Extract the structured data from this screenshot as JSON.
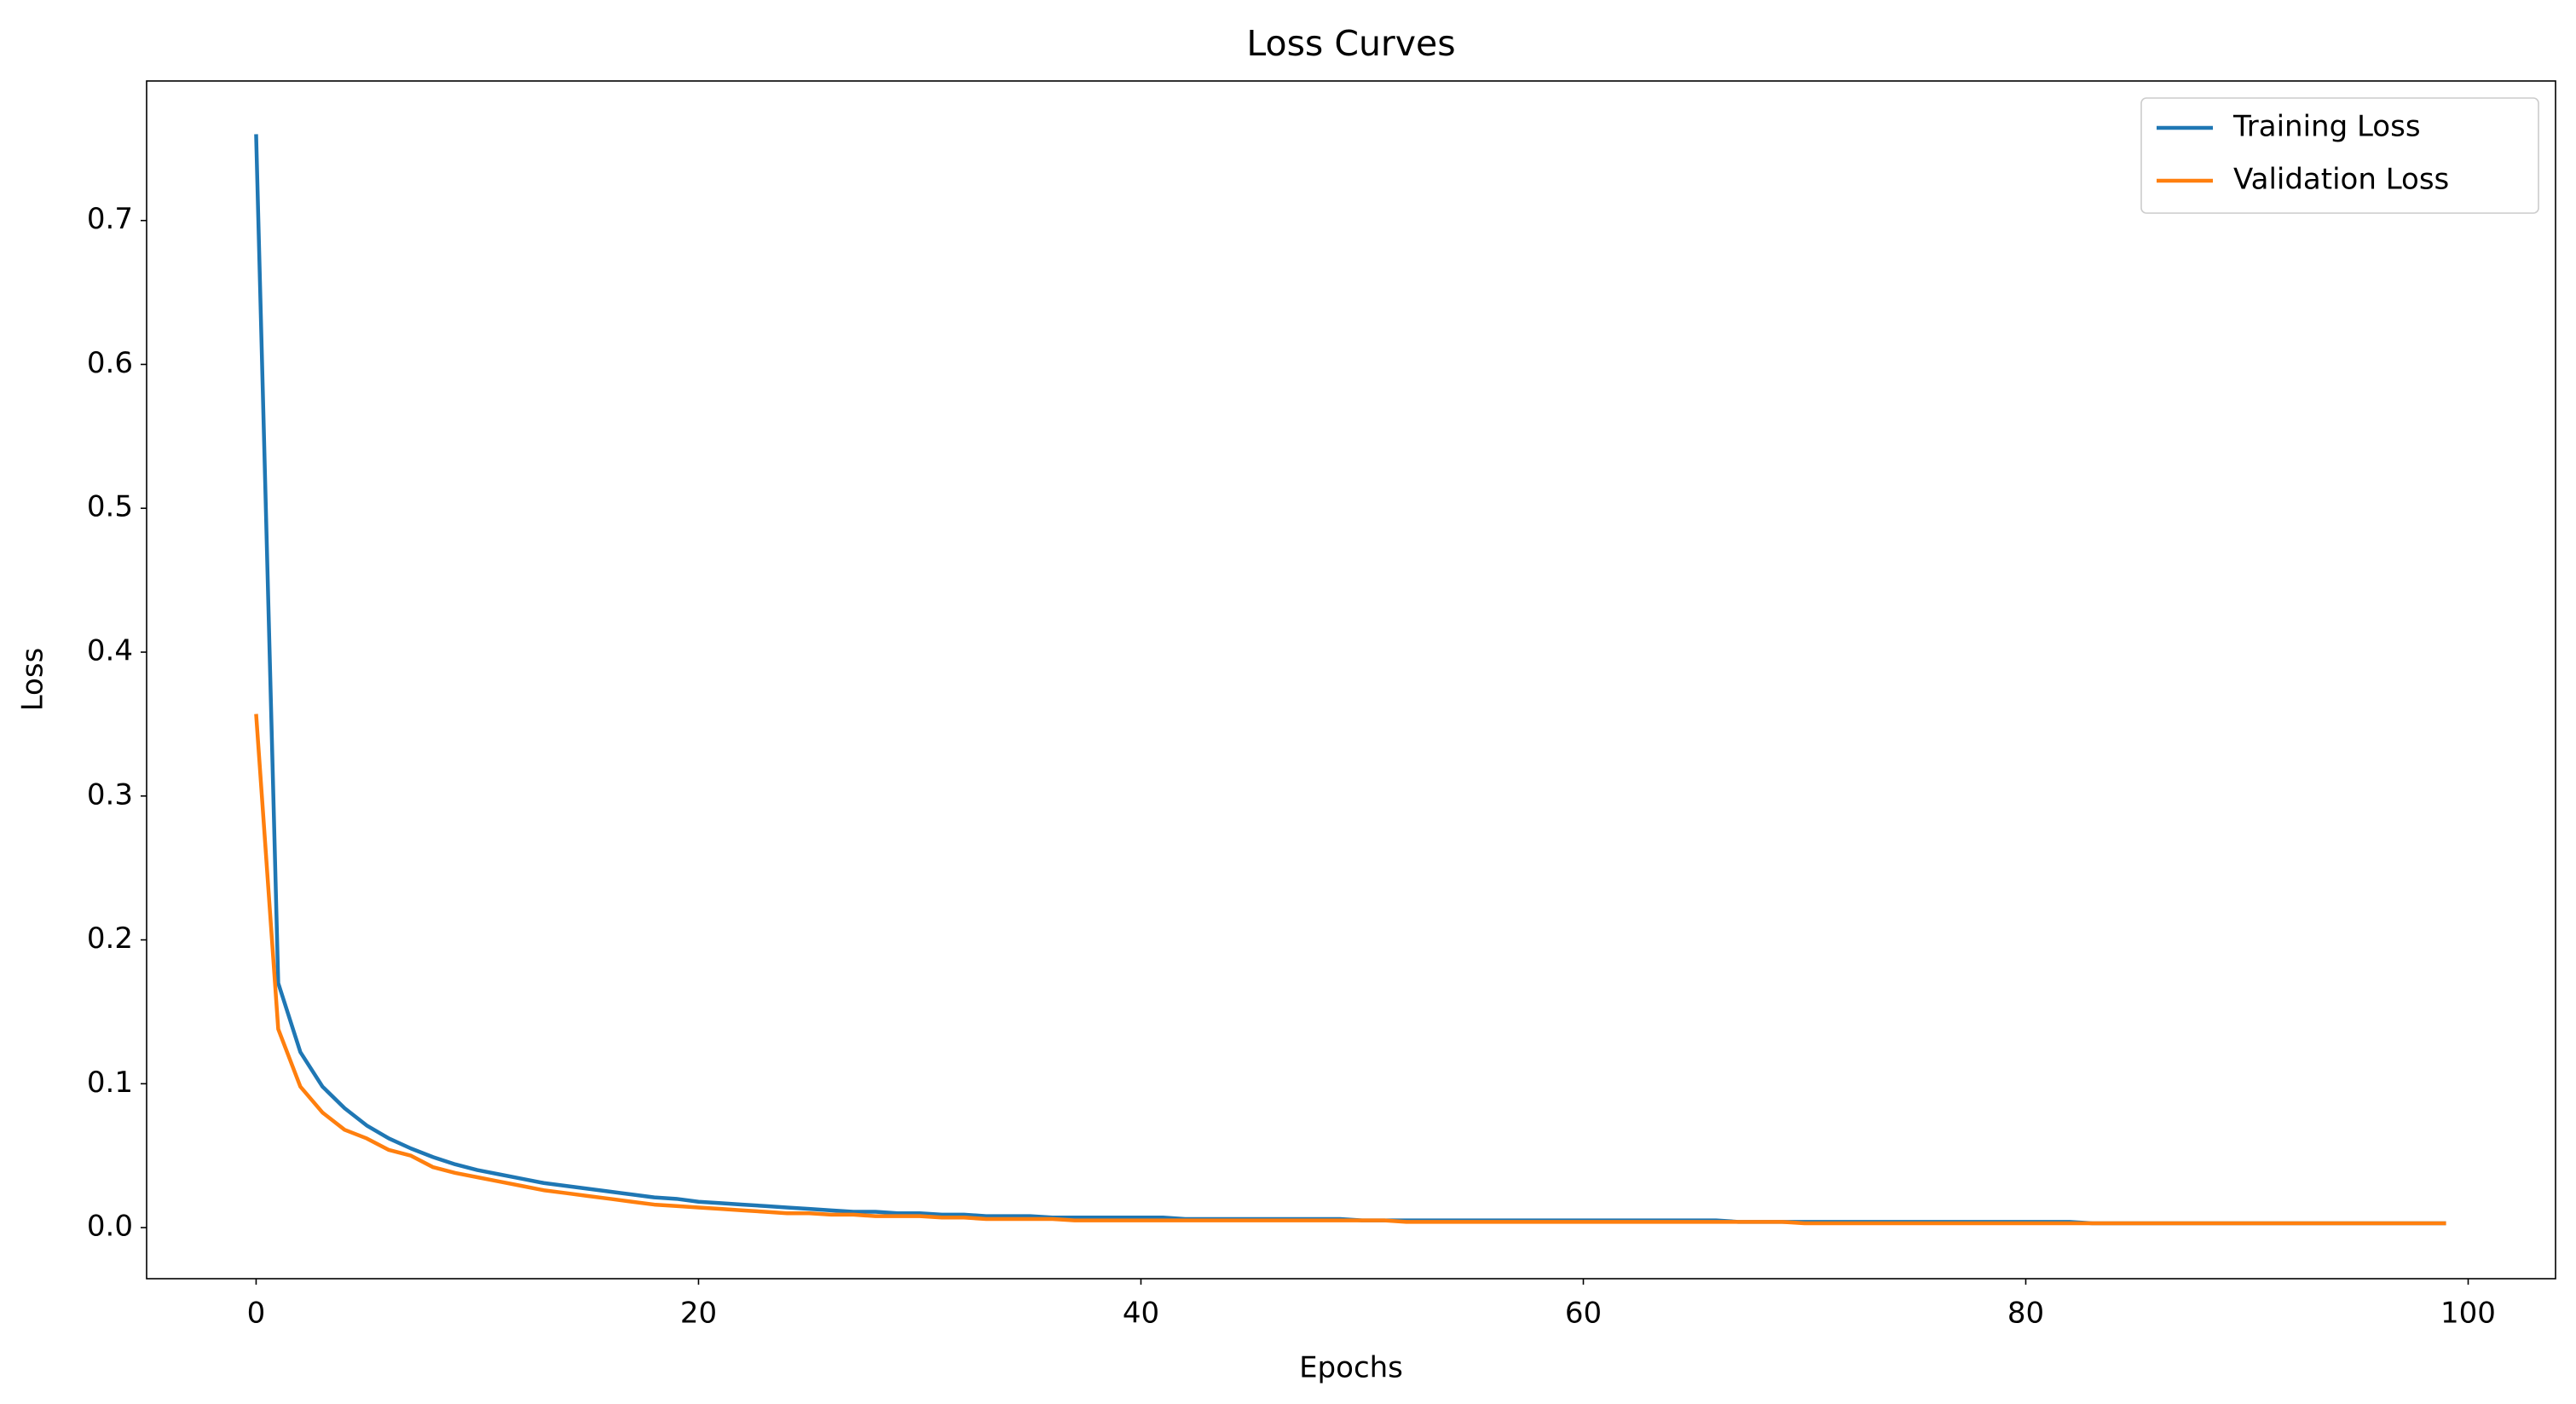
{
  "chart_data": {
    "type": "line",
    "title": "Loss Curves",
    "x_label": "Epochs",
    "y_label": "Loss",
    "x": [
      0,
      1,
      2,
      3,
      4,
      5,
      6,
      7,
      8,
      9,
      10,
      11,
      12,
      13,
      14,
      15,
      16,
      17,
      18,
      19,
      20,
      21,
      22,
      23,
      24,
      25,
      26,
      27,
      28,
      29,
      30,
      31,
      32,
      33,
      34,
      35,
      36,
      37,
      38,
      39,
      40,
      41,
      42,
      43,
      44,
      45,
      46,
      47,
      48,
      49,
      50,
      51,
      52,
      53,
      54,
      55,
      56,
      57,
      58,
      59,
      60,
      61,
      62,
      63,
      64,
      65,
      66,
      67,
      68,
      69,
      70,
      71,
      72,
      73,
      74,
      75,
      76,
      77,
      78,
      79,
      80,
      81,
      82,
      83,
      84,
      85,
      86,
      87,
      88,
      89,
      90,
      91,
      92,
      93,
      94,
      95,
      96,
      97,
      98,
      99
    ],
    "series": [
      {
        "name": "Training Loss",
        "color": "#1f77b4",
        "values": [
          0.76,
          0.17,
          0.122,
          0.098,
          0.083,
          0.071,
          0.062,
          0.055,
          0.049,
          0.044,
          0.04,
          0.037,
          0.034,
          0.031,
          0.029,
          0.027,
          0.025,
          0.023,
          0.021,
          0.02,
          0.018,
          0.017,
          0.016,
          0.015,
          0.014,
          0.013,
          0.012,
          0.011,
          0.011,
          0.01,
          0.01,
          0.009,
          0.009,
          0.008,
          0.008,
          0.008,
          0.007,
          0.007,
          0.007,
          0.007,
          0.007,
          0.007,
          0.006,
          0.006,
          0.006,
          0.006,
          0.006,
          0.006,
          0.006,
          0.006,
          0.005,
          0.005,
          0.005,
          0.005,
          0.005,
          0.005,
          0.005,
          0.005,
          0.005,
          0.005,
          0.005,
          0.005,
          0.005,
          0.005,
          0.005,
          0.005,
          0.005,
          0.004,
          0.004,
          0.004,
          0.004,
          0.004,
          0.004,
          0.004,
          0.004,
          0.004,
          0.004,
          0.004,
          0.004,
          0.004,
          0.004,
          0.004,
          0.004,
          0.003,
          0.003,
          0.003,
          0.003,
          0.003,
          0.003,
          0.003,
          0.003,
          0.003,
          0.003,
          0.003,
          0.003,
          0.003,
          0.003,
          0.003,
          0.003,
          0.003
        ]
      },
      {
        "name": "Validation Loss",
        "color": "#ff7f0e",
        "values": [
          0.357,
          0.138,
          0.098,
          0.08,
          0.068,
          0.062,
          0.054,
          0.05,
          0.042,
          0.038,
          0.035,
          0.032,
          0.029,
          0.026,
          0.024,
          0.022,
          0.02,
          0.018,
          0.016,
          0.015,
          0.014,
          0.013,
          0.012,
          0.011,
          0.01,
          0.01,
          0.009,
          0.009,
          0.008,
          0.008,
          0.008,
          0.007,
          0.007,
          0.006,
          0.006,
          0.006,
          0.006,
          0.005,
          0.005,
          0.005,
          0.005,
          0.005,
          0.005,
          0.005,
          0.005,
          0.005,
          0.005,
          0.005,
          0.005,
          0.005,
          0.005,
          0.005,
          0.004,
          0.004,
          0.004,
          0.004,
          0.004,
          0.004,
          0.004,
          0.004,
          0.004,
          0.004,
          0.004,
          0.004,
          0.004,
          0.004,
          0.004,
          0.004,
          0.004,
          0.004,
          0.003,
          0.003,
          0.003,
          0.003,
          0.003,
          0.003,
          0.003,
          0.003,
          0.003,
          0.003,
          0.003,
          0.003,
          0.003,
          0.003,
          0.003,
          0.003,
          0.003,
          0.003,
          0.003,
          0.003,
          0.003,
          0.003,
          0.003,
          0.003,
          0.003,
          0.003,
          0.003,
          0.003,
          0.003,
          0.003
        ]
      }
    ],
    "xlim": [
      -4.95,
      103.95
    ],
    "xticks": [
      0,
      20,
      40,
      60,
      80,
      100
    ],
    "ylim": [
      -0.0355,
      0.797
    ],
    "yticks": [
      {
        "value": 0,
        "label": "0.0"
      },
      0.1,
      0.2,
      0.3,
      0.4,
      0.5,
      0.6,
      0.7
    ],
    "legend": "upper right",
    "grid": false
  }
}
